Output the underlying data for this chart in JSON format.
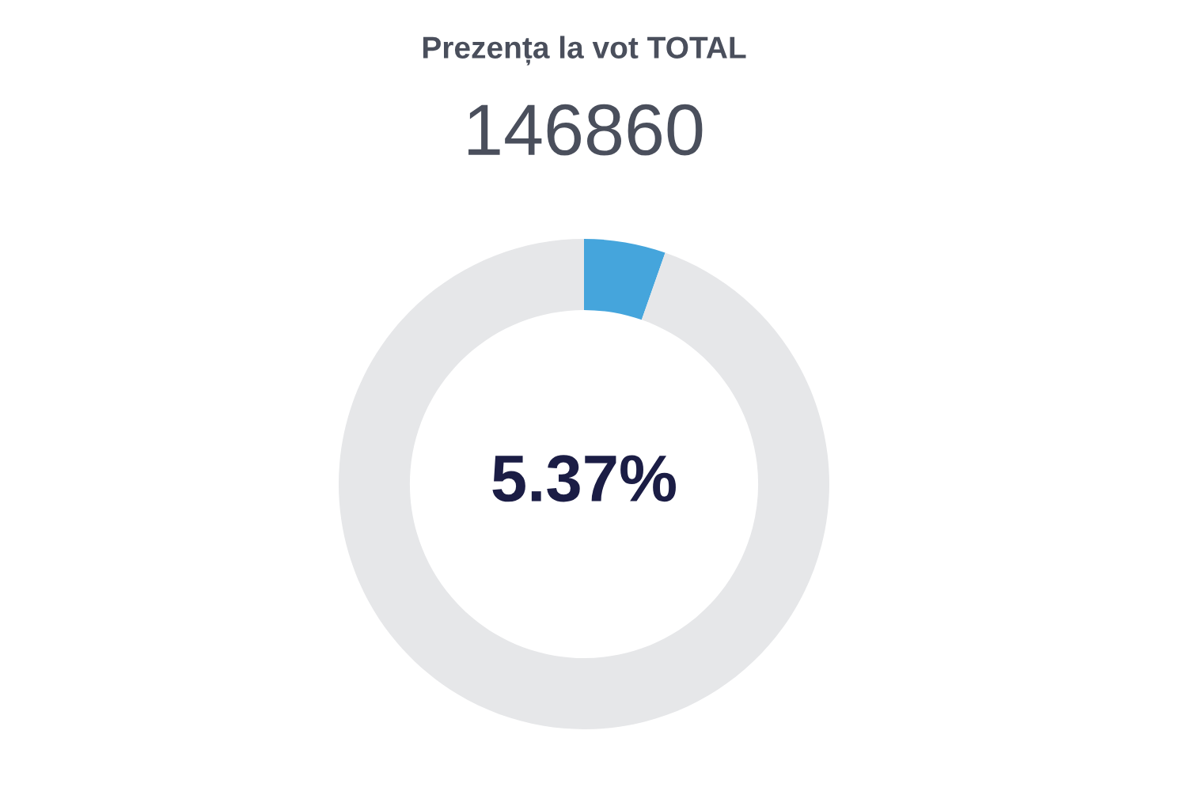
{
  "chart_data": {
    "type": "donut",
    "title": "Prezența la vot TOTAL",
    "subtitle": "146860",
    "categories": [
      null,
      null
    ],
    "values": [
      5.37,
      94.63
    ],
    "colors": [
      "#45a5dc",
      "#e6e7e9"
    ],
    "annotations": [
      "5.37%"
    ]
  }
}
